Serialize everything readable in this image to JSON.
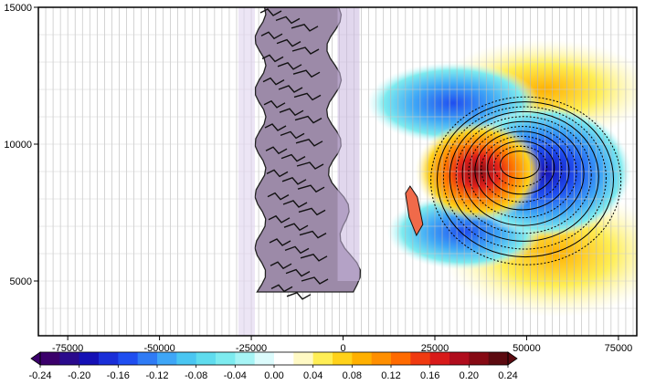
{
  "chart_data": {
    "type": "heatmap",
    "title": "",
    "xlabel": "",
    "ylabel": "",
    "xlim": [
      -83000,
      80000
    ],
    "ylim": [
      3000,
      15000
    ],
    "x_ticks": [
      -75000,
      -50000,
      -25000,
      0,
      25000,
      50000,
      75000
    ],
    "x_tick_labels": [
      "-75000",
      "-50000",
      "-25000",
      "0",
      "25000",
      "50000",
      "75000"
    ],
    "y_ticks": [
      5000,
      10000,
      15000
    ],
    "y_tick_labels": [
      "5000",
      "10000",
      "15000"
    ],
    "grid": true,
    "colorbar": {
      "placement": "bottom",
      "levels": [
        -0.24,
        -0.22,
        -0.2,
        -0.18,
        -0.16,
        -0.14,
        -0.12,
        -0.1,
        -0.08,
        -0.06,
        -0.04,
        -0.02,
        0.0,
        0.02,
        0.04,
        0.06,
        0.08,
        0.1,
        0.12,
        0.14,
        0.16,
        0.18,
        0.2,
        0.22,
        0.24
      ],
      "label_values": [
        -0.24,
        -0.2,
        -0.16,
        -0.12,
        -0.08,
        -0.04,
        0.0,
        0.04,
        0.08,
        0.12,
        0.16,
        0.2,
        0.24
      ],
      "labels": [
        "-0.24",
        "-0.20",
        "-0.16",
        "-0.12",
        "-0.08",
        "-0.04",
        "0.00",
        "0.04",
        "0.08",
        "0.12",
        "0.16",
        "0.20",
        "0.24"
      ],
      "colors": [
        "#3b006b",
        "#2a0a8c",
        "#1510b5",
        "#1a2fd8",
        "#1f4ef0",
        "#2f7bf5",
        "#3ea6f7",
        "#4ac6f2",
        "#5fdcee",
        "#7debef",
        "#a6f4f5",
        "#dcfbfc",
        "#ffffff",
        "#fff9c4",
        "#ffee55",
        "#ffd21a",
        "#ffb000",
        "#ff8f00",
        "#ff6a00",
        "#f03a10",
        "#d81a1a",
        "#b00d1d",
        "#860a14",
        "#5c0a10"
      ],
      "extend": "both"
    },
    "features": {
      "vertical_band": {
        "x_range": [
          -28000,
          0
        ],
        "y_range": [
          3000,
          15000
        ],
        "fill": "#9c8aa8"
      },
      "positive_blob": {
        "center": [
          37000,
          9000
        ],
        "peak": 0.18
      },
      "negative_blob": {
        "center": [
          55000,
          9000
        ],
        "peak": -0.16
      },
      "upper_negative_lobe": {
        "center": [
          30000,
          11500
        ],
        "peak": -0.1
      },
      "lower_negative_lobe": {
        "center": [
          33000,
          6800
        ],
        "peak": -0.12
      },
      "lower_positive_lobe": {
        "center": [
          58000,
          6000
        ],
        "peak": 0.06
      },
      "upper_positive_lobe": {
        "center": [
          55000,
          12000
        ],
        "peak": 0.04
      },
      "contour_center": [
        48000,
        9300
      ],
      "contour_levels": 12
    }
  }
}
